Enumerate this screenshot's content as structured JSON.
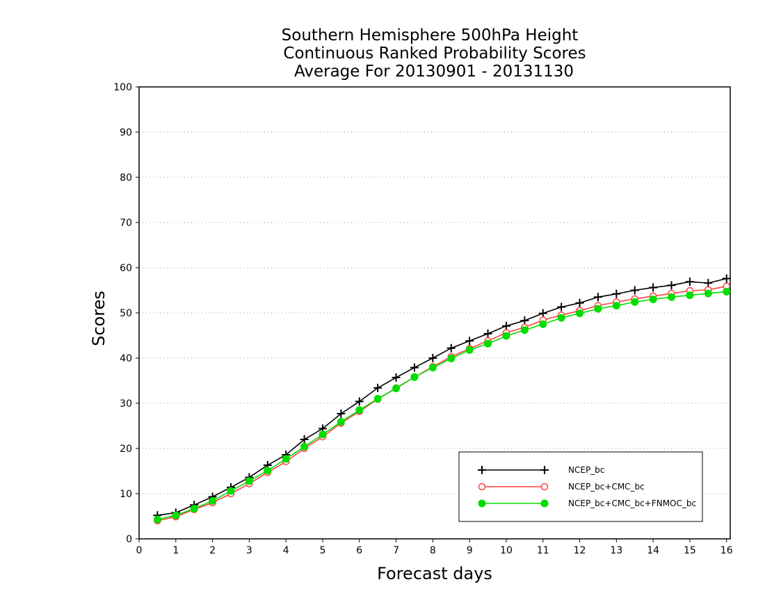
{
  "chart_data": {
    "type": "line",
    "title": [
      "Southern Hemisphere 500hPa Height",
      "Continuous Ranked Probability Scores",
      "Average For 20130901 - 20131130"
    ],
    "xlabel": "Forecast days",
    "ylabel": "Scores",
    "xlim": [
      0,
      16.1
    ],
    "ylim": [
      0,
      100
    ],
    "xticks": [
      0,
      1,
      2,
      3,
      4,
      5,
      6,
      7,
      8,
      9,
      10,
      11,
      12,
      13,
      14,
      15,
      16
    ],
    "yticks": [
      0,
      10,
      20,
      30,
      40,
      50,
      60,
      70,
      80,
      90,
      100
    ],
    "grid": "horizontal dotted",
    "legend_position": "bottom-right",
    "x": [
      0.5,
      1.0,
      1.5,
      2.0,
      2.5,
      3.0,
      3.5,
      4.0,
      4.5,
      5.0,
      5.5,
      6.0,
      6.5,
      7.0,
      7.5,
      8.0,
      8.5,
      9.0,
      9.5,
      10.0,
      10.5,
      11.0,
      11.5,
      12.0,
      12.5,
      13.0,
      13.5,
      14.0,
      14.5,
      15.0,
      15.5,
      16.0
    ],
    "series": [
      {
        "name": "NCEP_bc",
        "color": "#000000",
        "marker": "plus",
        "values": [
          5.2,
          5.8,
          7.5,
          9.3,
          11.4,
          13.6,
          16.3,
          18.6,
          22.0,
          24.4,
          27.7,
          30.4,
          33.4,
          35.7,
          37.9,
          40.0,
          42.2,
          43.8,
          45.4,
          47.1,
          48.3,
          49.9,
          51.3,
          52.2,
          53.5,
          54.2,
          55.0,
          55.6,
          56.1,
          56.9,
          56.6,
          57.6
        ]
      },
      {
        "name": "NCEP_bc+CMC_bc",
        "color": "#ff4040",
        "marker": "open-circle",
        "values": [
          4.0,
          4.9,
          6.5,
          8.0,
          10.0,
          12.2,
          14.7,
          17.1,
          20.0,
          22.6,
          25.6,
          28.2,
          30.9,
          33.4,
          35.8,
          38.1,
          40.3,
          42.1,
          43.8,
          45.6,
          46.8,
          48.4,
          49.5,
          50.5,
          51.6,
          52.4,
          53.1,
          53.7,
          54.3,
          54.9,
          55.1,
          55.9
        ]
      },
      {
        "name": "NCEP_bc+CMC_bc+FNMOC_bc",
        "color": "#00dd00",
        "marker": "filled-circle",
        "values": [
          4.3,
          5.2,
          6.7,
          8.4,
          10.6,
          12.8,
          15.1,
          17.7,
          20.4,
          23.1,
          25.9,
          28.5,
          31.0,
          33.3,
          35.8,
          37.9,
          39.9,
          41.8,
          43.2,
          44.9,
          46.2,
          47.5,
          48.9,
          49.9,
          50.9,
          51.6,
          52.4,
          53.0,
          53.5,
          53.9,
          54.3,
          54.7
        ]
      }
    ]
  }
}
